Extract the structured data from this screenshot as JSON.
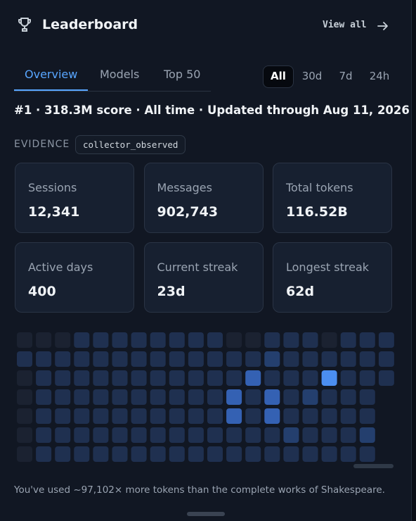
{
  "header": {
    "title": "Leaderboard",
    "view_all": "View all"
  },
  "tabs": {
    "items": [
      "Overview",
      "Models",
      "Top 50"
    ],
    "active": 0
  },
  "ranges": {
    "items": [
      "All",
      "30d",
      "7d",
      "24h"
    ],
    "active": 0
  },
  "summary": "#1 · 318.3M score · All time · Updated through Aug 11, 2026",
  "evidence": {
    "label": "EVIDENCE",
    "value": "collector_observed"
  },
  "stats": [
    {
      "label": "Sessions",
      "value": "12,341"
    },
    {
      "label": "Messages",
      "value": "902,743"
    },
    {
      "label": "Total tokens",
      "value": "116.52B"
    },
    {
      "label": "Active days",
      "value": "400"
    },
    {
      "label": "Current streak",
      "value": "23d"
    },
    {
      "label": "Longest streak",
      "value": "62d"
    }
  ],
  "heatmap": {
    "levels": [
      [
        0,
        0,
        0,
        1,
        1,
        1,
        1,
        1,
        1,
        1,
        1,
        0,
        0,
        1,
        1,
        1,
        0,
        1,
        1,
        1
      ],
      [
        1,
        1,
        1,
        1,
        1,
        1,
        1,
        1,
        1,
        1,
        1,
        1,
        1,
        2,
        1,
        1,
        1,
        1,
        1,
        1
      ],
      [
        0,
        1,
        1,
        1,
        1,
        1,
        1,
        1,
        1,
        1,
        1,
        1,
        3,
        1,
        1,
        1,
        4,
        1,
        1,
        1
      ],
      [
        0,
        1,
        1,
        1,
        1,
        1,
        1,
        1,
        1,
        1,
        1,
        3,
        1,
        3,
        1,
        2,
        1,
        1,
        1,
        null
      ],
      [
        0,
        1,
        1,
        1,
        1,
        1,
        1,
        1,
        1,
        1,
        1,
        3,
        1,
        3,
        1,
        1,
        1,
        1,
        1,
        null
      ],
      [
        0,
        1,
        1,
        1,
        1,
        1,
        1,
        1,
        1,
        1,
        1,
        1,
        1,
        1,
        2,
        1,
        1,
        1,
        2,
        null
      ],
      [
        0,
        1,
        1,
        1,
        1,
        1,
        1,
        1,
        1,
        1,
        1,
        1,
        1,
        1,
        1,
        1,
        1,
        1,
        1,
        null
      ]
    ]
  },
  "footer": "You've used ~97,102× more tokens than the complete works of Shakespeare."
}
